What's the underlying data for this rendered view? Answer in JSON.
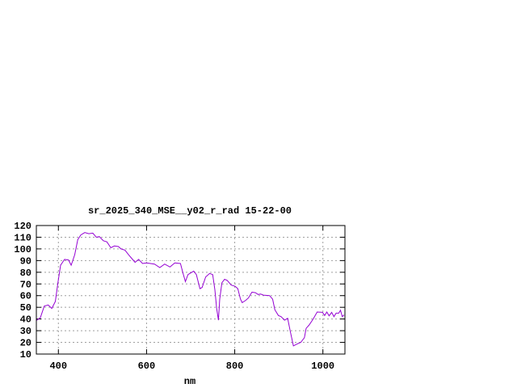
{
  "chart_data": {
    "type": "line",
    "title": "sr_2025_340_MSE__y02_r_rad 15-22-00",
    "xlabel": "nm",
    "ylabel": "",
    "xlim": [
      350,
      1050
    ],
    "ylim": [
      10,
      120
    ],
    "xticks": [
      400,
      600,
      800,
      1000
    ],
    "yticks": [
      10,
      20,
      30,
      40,
      50,
      60,
      70,
      80,
      90,
      100,
      110,
      120
    ],
    "grid": true,
    "line_color": "#9400d3",
    "series": [
      {
        "x": [
          350,
          359,
          368,
          377,
          385,
          393,
          399,
          405,
          414,
          423,
          429,
          437,
          444,
          451,
          460,
          469,
          478,
          486,
          493,
          502,
          510,
          519,
          527,
          536,
          542,
          551,
          559,
          566,
          574,
          582,
          591,
          600,
          618,
          630,
          641,
          653,
          664,
          677,
          682,
          688,
          694,
          707,
          713,
          721,
          726,
          734,
          743,
          750,
          755,
          759,
          763,
          766,
          771,
          777,
          783,
          792,
          801,
          807,
          813,
          817,
          825,
          831,
          839,
          847,
          853,
          859,
          865,
          879,
          886,
          891,
          899,
          905,
          913,
          920,
          926,
          933,
          941,
          950,
          958,
          962,
          969,
          978,
          987,
          999,
          1004,
          1009,
          1014,
          1020,
          1025,
          1030,
          1036,
          1040,
          1044,
          1048
        ],
        "y": [
          38.8,
          41,
          51,
          52,
          49,
          55,
          71,
          86,
          91,
          90.5,
          86,
          95,
          108,
          112,
          114,
          113,
          113.5,
          110,
          110.5,
          107,
          106,
          101,
          102.5,
          102,
          100,
          99,
          95,
          92,
          88.5,
          91,
          87.5,
          88,
          87,
          84,
          87,
          84.5,
          88,
          87.5,
          80,
          72,
          78,
          81,
          78,
          66,
          67,
          76,
          79,
          78,
          65,
          49,
          39,
          57,
          71,
          74,
          73,
          69,
          68,
          66,
          57,
          54,
          56,
          58,
          63,
          62.5,
          61,
          61.3,
          60.4,
          60,
          57,
          48,
          43,
          42,
          39,
          40.6,
          29.6,
          17,
          18.5,
          20,
          24,
          32,
          35,
          40,
          46,
          45.7,
          43,
          46,
          42.7,
          45.7,
          42,
          45,
          45,
          47.5,
          42,
          43.5
        ]
      }
    ]
  }
}
